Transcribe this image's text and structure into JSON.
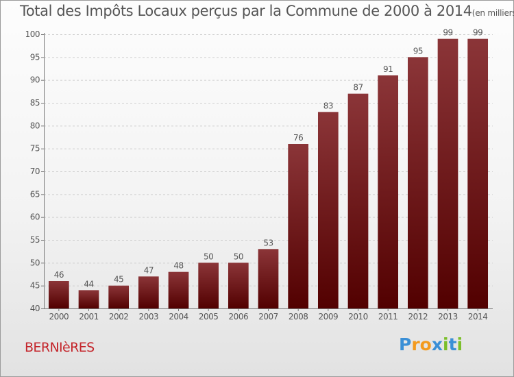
{
  "header": {
    "title": "Total des Impôts Locaux perçus par la Commune de 2000 à 2014",
    "unit": "(en milliers d'€)"
  },
  "footer": {
    "commune": "BERNIèRES"
  },
  "logo": {
    "letters": [
      {
        "char": "P",
        "color": "#3a8fd6"
      },
      {
        "char": "r",
        "color": "#f39a1e"
      },
      {
        "char": "o",
        "color": "#f39a1e"
      },
      {
        "char": "x",
        "color": "#3a8fd6"
      },
      {
        "char": "i",
        "color": "#7bbf2a"
      },
      {
        "char": "t",
        "color": "#3a8fd6"
      },
      {
        "char": "i",
        "color": "#7bbf2a"
      }
    ]
  },
  "colors": {
    "bar_top": "#8b3538",
    "bar_bottom": "#520000",
    "grid": "#cfcfcf",
    "text": "#555555"
  },
  "chart_data": {
    "type": "bar",
    "categories": [
      "2000",
      "2001",
      "2002",
      "2003",
      "2004",
      "2005",
      "2006",
      "2007",
      "2008",
      "2009",
      "2010",
      "2011",
      "2012",
      "2013",
      "2014"
    ],
    "values": [
      46,
      44,
      45,
      47,
      48,
      50,
      50,
      53,
      76,
      83,
      87,
      91,
      95,
      99,
      99
    ],
    "ylim": [
      40,
      100
    ],
    "yticks": [
      40,
      45,
      50,
      55,
      60,
      65,
      70,
      75,
      80,
      85,
      90,
      95,
      100
    ],
    "grid": "horizontal dashed",
    "show_data_labels": true
  }
}
